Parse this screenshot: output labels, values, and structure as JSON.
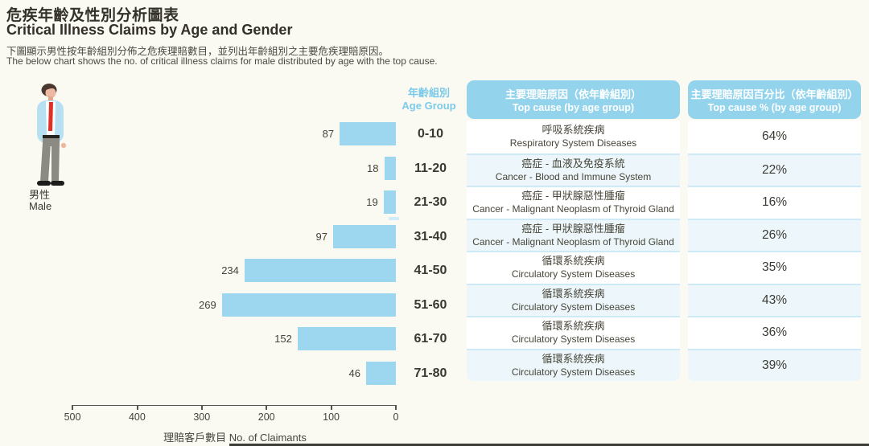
{
  "header": {
    "title_zh": "危疾年齡及性別分析圖表",
    "title_en": "Critical Illness Claims by Age and Gender",
    "subtitle_zh": "下圖顯示男性按年齡組別分佈之危疾理賠數目，並列出年齡組別之主要危疾理賠原因。",
    "subtitle_en": "The below chart shows the no. of critical illness claims for male distributed by age with the top cause."
  },
  "gender": {
    "label_zh": "男性",
    "label_en": "Male"
  },
  "chart_data": {
    "type": "bar",
    "orientation": "horizontal",
    "categories": [
      "0-10",
      "11-20",
      "21-30",
      "31-40",
      "41-50",
      "51-60",
      "61-70",
      "71-80"
    ],
    "values": [
      87,
      18,
      19,
      97,
      234,
      269,
      152,
      46
    ],
    "xlabel_zh": "理賠客戶數目",
    "xlabel_en": "No. of Claimants",
    "ylabel_zh": "年齡組別",
    "ylabel_en": "Age Group",
    "axis_ticks": [
      "500",
      "400",
      "300",
      "200",
      "100",
      "0"
    ],
    "xlim": [
      0,
      500
    ],
    "grid": false,
    "legend": false,
    "bar_color": "#9CD7EF"
  },
  "table": {
    "age_header_zh": "年齡組別",
    "age_header_en": "Age Group",
    "cause_header_zh": "主要理賠原因（依年齡組別）",
    "cause_header_en": "Top cause (by age group)",
    "pct_header_zh": "主要理賠原因百分比（依年齡組別）",
    "pct_header_en": "Top cause % (by age group)",
    "rows": [
      {
        "age": "0-10",
        "cause_zh": "呼吸系統疾病",
        "cause_en": "Respiratory System Diseases",
        "pct": "64%"
      },
      {
        "age": "11-20",
        "cause_zh": "癌症 - 血液及免疫系統",
        "cause_en": "Cancer - Blood and Immune System",
        "pct": "22%"
      },
      {
        "age": "21-30",
        "cause_zh": "癌症 - 甲狀腺惡性腫瘤",
        "cause_en": "Cancer - Malignant Neoplasm of Thyroid Gland",
        "pct": "16%"
      },
      {
        "age": "31-40",
        "cause_zh": "癌症 - 甲狀腺惡性腫瘤",
        "cause_en": "Cancer - Malignant Neoplasm of Thyroid Gland",
        "pct": "26%"
      },
      {
        "age": "41-50",
        "cause_zh": "循環系統疾病",
        "cause_en": "Circulatory System Diseases",
        "pct": "35%"
      },
      {
        "age": "51-60",
        "cause_zh": "循環系統疾病",
        "cause_en": "Circulatory System Diseases",
        "pct": "43%"
      },
      {
        "age": "61-70",
        "cause_zh": "循環系統疾病",
        "cause_en": "Circulatory System Diseases",
        "pct": "36%"
      },
      {
        "age": "71-80",
        "cause_zh": "循環系統疾病",
        "cause_en": "Circulatory System Diseases",
        "pct": "39%"
      }
    ]
  },
  "colors": {
    "background": "#FAFAF2",
    "bar_blue": "#9CD7EF",
    "header_blue": "#93D4EC",
    "pale_row": "#EDF7FB",
    "row_separator": "#CDEAF6",
    "light_blue_text": "#7CCAE9",
    "title_text": "#33312A",
    "body_text": "#474538"
  }
}
